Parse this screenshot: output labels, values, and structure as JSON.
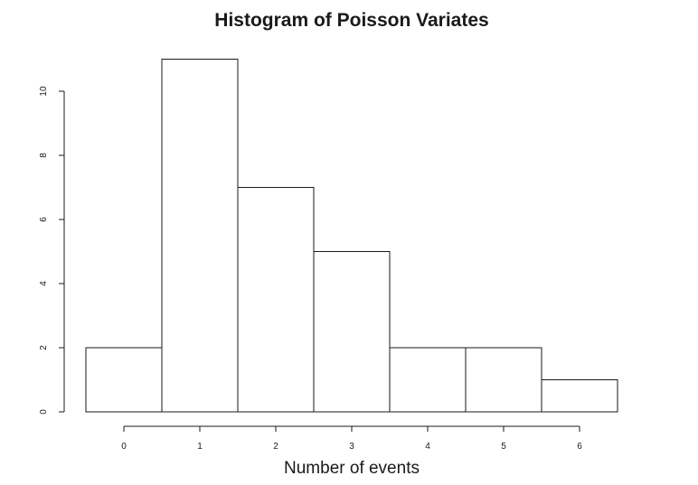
{
  "chart_data": {
    "type": "bar",
    "title": "Histogram of Poisson Variates",
    "xlabel": "Number of events",
    "ylabel": "",
    "categories": [
      "0",
      "1",
      "2",
      "3",
      "4",
      "5",
      "6"
    ],
    "values": [
      2,
      11,
      7,
      5,
      2,
      2,
      1
    ],
    "x_ticks": [
      "0",
      "1",
      "2",
      "3",
      "4",
      "5",
      "6"
    ],
    "y_ticks": [
      "0",
      "2",
      "4",
      "6",
      "8",
      "10"
    ],
    "xlim": [
      -0.5,
      6.5
    ],
    "ylim": [
      0,
      11
    ],
    "grid": false,
    "legend": "none",
    "colors": {
      "bar_fill": "#ffffff",
      "bar_stroke": "#1a1a1a",
      "text": "#1a1a1a"
    }
  }
}
